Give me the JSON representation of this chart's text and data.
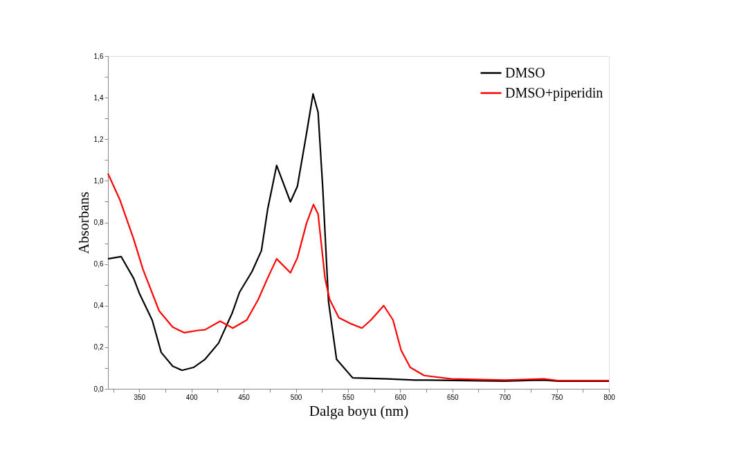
{
  "chart_data": {
    "type": "line",
    "xlabel": "Dalga boyu (nm)",
    "ylabel": "Absorbans",
    "xlim": [
      320,
      800
    ],
    "xticks": [
      350,
      400,
      450,
      500,
      550,
      600,
      650,
      700,
      750,
      800,
      {
        "value": 325,
        "label": null
      },
      {
        "value": 375,
        "label": null
      },
      {
        "value": 425,
        "label": null
      },
      {
        "value": 475,
        "label": null
      },
      {
        "value": 525,
        "label": null
      },
      {
        "value": 575,
        "label": null
      },
      {
        "value": 625,
        "label": null
      },
      {
        "value": 675,
        "label": null
      },
      {
        "value": 725,
        "label": null
      },
      {
        "value": 775,
        "label": null
      }
    ],
    "ylim": [
      0,
      1.6
    ],
    "yticks": [
      {
        "value": 0,
        "label": "0,0"
      },
      {
        "value": 0.2,
        "label": "0,2"
      },
      {
        "value": 0.4,
        "label": "0,4"
      },
      {
        "value": 0.6,
        "label": "0,6"
      },
      {
        "value": 0.8,
        "label": "0,8"
      },
      {
        "value": 1.0,
        "label": "1,0"
      },
      {
        "value": 1.2,
        "label": "1,2"
      },
      {
        "value": 1.4,
        "label": "1,4"
      },
      {
        "value": 1.6,
        "label": "1,6"
      },
      {
        "value": 0.1,
        "label": null
      },
      {
        "value": 0.3,
        "label": null
      },
      {
        "value": 0.5,
        "label": null
      },
      {
        "value": 0.7,
        "label": null
      },
      {
        "value": 0.9,
        "label": null
      },
      {
        "value": 1.1,
        "label": null
      },
      {
        "value": 1.3,
        "label": null
      },
      {
        "value": 1.5,
        "label": null
      }
    ],
    "grid": false,
    "legend": "top right",
    "marker": "none",
    "line_style": "solid",
    "series": [
      {
        "name": "DMSO",
        "color": "#000000",
        "x": [
          320,
          332.6,
          344.7,
          350,
          362.4,
          371,
          382,
          391,
          402,
          413,
          426,
          439,
          446,
          458,
          467,
          473,
          481.6,
          494.8,
          501.5,
          510.3,
          516.5,
          521.3,
          525.7,
          531.3,
          539,
          554.4,
          587.5,
          614,
          627,
          700,
          737.6,
          751,
          800
        ],
        "values": [
          0.625,
          0.636,
          0.53,
          0.46,
          0.33,
          0.175,
          0.109,
          0.089,
          0.103,
          0.142,
          0.22,
          0.364,
          0.464,
          0.564,
          0.664,
          0.863,
          1.074,
          0.899,
          0.974,
          1.23,
          1.418,
          1.33,
          0.974,
          0.42,
          0.142,
          0.053,
          0.048,
          0.042,
          0.042,
          0.037,
          0.042,
          0.037,
          0.037
        ]
      },
      {
        "name": "DMSO+piperidin",
        "color": "#ff0000",
        "x": [
          320,
          331.5,
          344.7,
          353.5,
          369,
          382,
          393,
          406.5,
          413,
          427.5,
          439.6,
          453,
          464,
          472.8,
          481.6,
          494.8,
          501.5,
          510.3,
          516.9,
          521.3,
          528,
          532.4,
          541.2,
          552.2,
          563.3,
          572,
          584.2,
          593.1,
          600.8,
          609.6,
          622.9,
          649,
          700,
          737.6,
          751,
          800
        ],
        "values": [
          1.035,
          0.908,
          0.719,
          0.575,
          0.375,
          0.297,
          0.27,
          0.281,
          0.284,
          0.325,
          0.292,
          0.331,
          0.43,
          0.53,
          0.625,
          0.558,
          0.63,
          0.797,
          0.886,
          0.841,
          0.53,
          0.43,
          0.342,
          0.314,
          0.292,
          0.331,
          0.4,
          0.331,
          0.186,
          0.103,
          0.064,
          0.048,
          0.042,
          0.048,
          0.04,
          0.04
        ]
      }
    ]
  }
}
